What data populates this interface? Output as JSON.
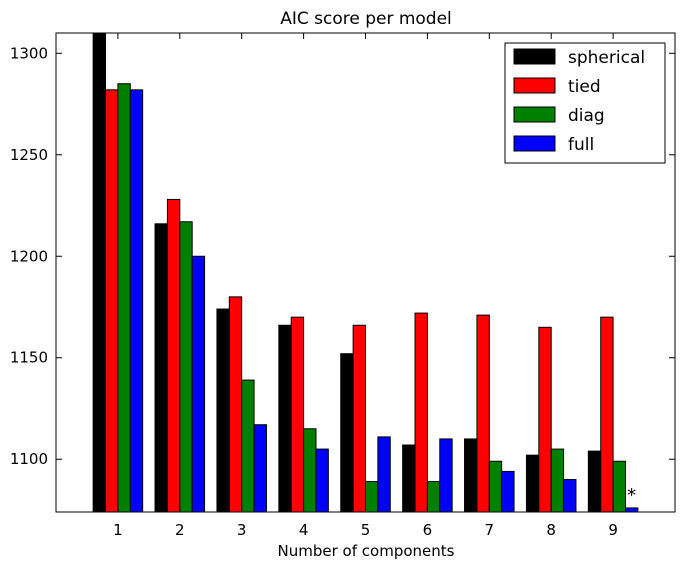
{
  "chart_data": {
    "type": "bar",
    "title": "AIC score per model",
    "xlabel": "Number of components",
    "ylabel": "",
    "categories": [
      "1",
      "2",
      "3",
      "4",
      "5",
      "6",
      "7",
      "8",
      "9"
    ],
    "ylim": [
      1074,
      1310
    ],
    "yticks": [
      1100,
      1150,
      1200,
      1250,
      1300
    ],
    "series": [
      {
        "name": "spherical",
        "color": "#000000",
        "values": [
          1310,
          1216,
          1174,
          1166,
          1152,
          1107,
          1110,
          1102,
          1104
        ]
      },
      {
        "name": "tied",
        "color": "#ff0000",
        "values": [
          1282,
          1228,
          1180,
          1170,
          1166,
          1172,
          1171,
          1165,
          1170
        ]
      },
      {
        "name": "diag",
        "color": "#008000",
        "values": [
          1285,
          1217,
          1139,
          1115,
          1089,
          1089,
          1099,
          1105,
          1099
        ]
      },
      {
        "name": "full",
        "color": "#0000ff",
        "values": [
          1282,
          1200,
          1117,
          1105,
          1111,
          1110,
          1094,
          1090,
          1076
        ]
      }
    ],
    "best_marker": {
      "text": "*",
      "category": "9",
      "series": "full"
    },
    "legend_position": "top-right",
    "grid": false
  }
}
